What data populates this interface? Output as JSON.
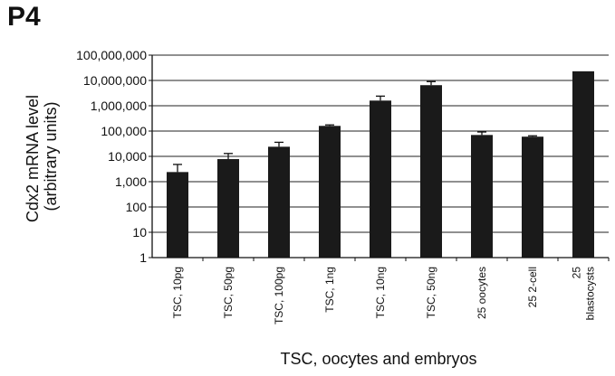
{
  "panel_label": "P4",
  "chart_data": {
    "type": "bar",
    "title": "",
    "xlabel": "TSC, oocytes and embryos",
    "ylabel_lines": [
      "Cdx2 mRNA level",
      "(arbitrary units)"
    ],
    "y_scale": "log",
    "ylim": [
      1,
      100000000
    ],
    "y_ticks": [
      {
        "value": 1,
        "label": "1"
      },
      {
        "value": 10,
        "label": "10"
      },
      {
        "value": 100,
        "label": "100"
      },
      {
        "value": 1000,
        "label": "1,000"
      },
      {
        "value": 10000,
        "label": "10,000"
      },
      {
        "value": 100000,
        "label": "100,000"
      },
      {
        "value": 1000000,
        "label": "1,000,000"
      },
      {
        "value": 10000000,
        "label": "10,000,000"
      },
      {
        "value": 100000000,
        "label": "100,000,000"
      }
    ],
    "grid": true,
    "bar_color": "#1a1a1a",
    "categories": [
      {
        "lines": [
          "TSC, 10pg"
        ]
      },
      {
        "lines": [
          "TSC, 50pg"
        ]
      },
      {
        "lines": [
          "TSC, 100pg"
        ]
      },
      {
        "lines": [
          "TSC, 1ng"
        ]
      },
      {
        "lines": [
          "TSC, 10ng"
        ]
      },
      {
        "lines": [
          "TSC, 50ng"
        ]
      },
      {
        "lines": [
          "25 oocytes"
        ]
      },
      {
        "lines": [
          "25 2-cell"
        ]
      },
      {
        "lines": [
          "25",
          "blastocysts"
        ]
      }
    ],
    "values": [
      2400,
      7800,
      24000,
      160000,
      1600000,
      6500000,
      70000,
      60000,
      23000000
    ],
    "error_upper": [
      4800,
      13000,
      36000,
      175000,
      2400000,
      9000000,
      92000,
      65000,
      null
    ]
  }
}
